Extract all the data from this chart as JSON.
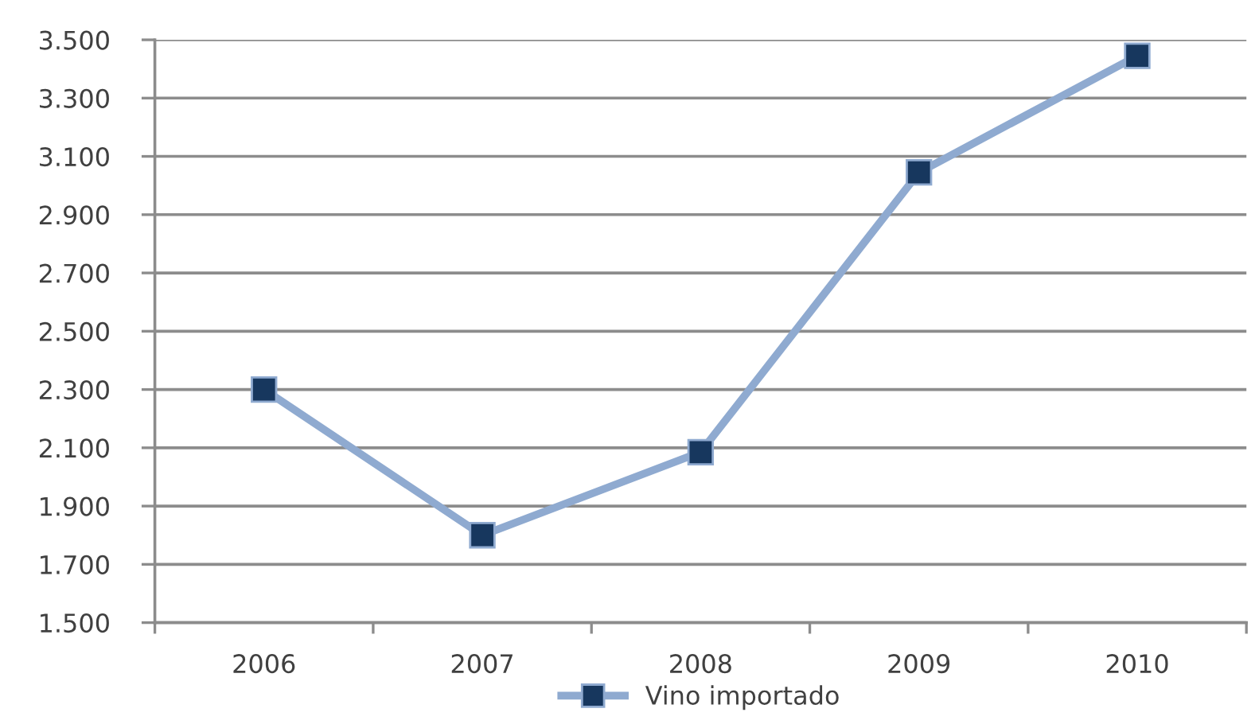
{
  "chart_data": {
    "type": "line",
    "categories": [
      "2006",
      "2007",
      "2008",
      "2009",
      "2010"
    ],
    "series": [
      {
        "name": "Vino importado",
        "color": "#8faad0",
        "colors": [
          "#17375e",
          "#17375e",
          "#17375e",
          "#17375e",
          "#17375e"
        ],
        "values": [
          2300,
          1800,
          2085,
          3045,
          3445
        ]
      }
    ],
    "ylim": [
      1500,
      3500
    ],
    "yticks": [
      {
        "value": 1500,
        "label": "1.500"
      },
      {
        "value": 1700,
        "label": "1.700"
      },
      {
        "value": 1900,
        "label": "1.900"
      },
      {
        "value": 2100,
        "label": "2.100"
      },
      {
        "value": 2300,
        "label": "2.300"
      },
      {
        "value": 2500,
        "label": "2.500"
      },
      {
        "value": 2700,
        "label": "2.700"
      },
      {
        "value": 2900,
        "label": "2.900"
      },
      {
        "value": 3100,
        "label": "3.100"
      },
      {
        "value": 3300,
        "label": "3.300"
      },
      {
        "value": 3500,
        "label": "3.500"
      }
    ],
    "grid": "y",
    "legend": "bottom",
    "marker": "square",
    "line_style": "solid"
  }
}
